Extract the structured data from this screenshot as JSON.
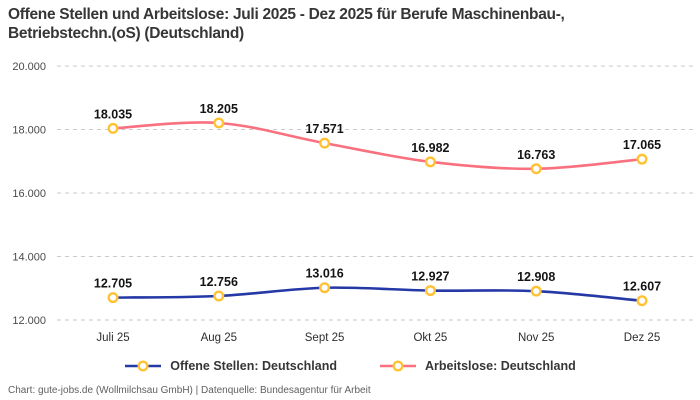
{
  "title": {
    "line1": "Offene Stellen und Arbeitslose: Juli 2025 - Dez 2025 für Berufe Maschinenbau-,",
    "line2": "Betriebstechn.(oS) (Deutschland)"
  },
  "legend": {
    "items": [
      {
        "label": "Offene Stellen: Deutschland",
        "color": "#2438A6"
      },
      {
        "label": "Arbeitslose: Deutschland",
        "color": "#F9707F"
      }
    ]
  },
  "footer": {
    "credit": "Chart: gute-jobs.de (Wollmilchsau GmbH) | Datenquelle: Bundesagentur für Arbeit"
  },
  "chart_data": {
    "type": "line",
    "title": "Offene Stellen und Arbeitslose: Juli 2025 - Dez 2025 für Berufe Maschinenbau-, Betriebstechn.(oS) (Deutschland)",
    "categories": [
      "Juli 25",
      "Aug 25",
      "Sept 25",
      "Okt 25",
      "Nov 25",
      "Dez 25"
    ],
    "series": [
      {
        "name": "Offene Stellen: Deutschland",
        "color": "#2438A6",
        "values": [
          12705,
          12756,
          13016,
          12927,
          12908,
          12607
        ],
        "labels": [
          "12.705",
          "12.756",
          "13.016",
          "12.927",
          "12.908",
          "12.607"
        ]
      },
      {
        "name": "Arbeitslose: Deutschland",
        "color": "#F9707F",
        "values": [
          18035,
          18205,
          17571,
          16982,
          16763,
          17065
        ],
        "labels": [
          "18.035",
          "18.205",
          "17.571",
          "16.982",
          "16.763",
          "17.065"
        ]
      }
    ],
    "xlabel": "",
    "ylabel": "",
    "ylim": [
      12000,
      20000
    ],
    "yticks": [
      12000,
      14000,
      16000,
      18000,
      20000
    ],
    "ytick_labels": [
      "12.000",
      "14.000",
      "16.000",
      "18.000",
      "20.000"
    ],
    "grid": "horizontal-dashed",
    "legend_position": "bottom",
    "marker": {
      "fill": "#FFFFFF",
      "stroke": "#FFC234"
    }
  },
  "colors": {
    "background": "#FFFFFF",
    "grid": "#CBCBCB",
    "tick_text": "#4A4A4A",
    "axis_text": "#2E2E2E",
    "data_label": "#141414",
    "title_text": "#363636",
    "footer_text": "#5F5F5F"
  }
}
